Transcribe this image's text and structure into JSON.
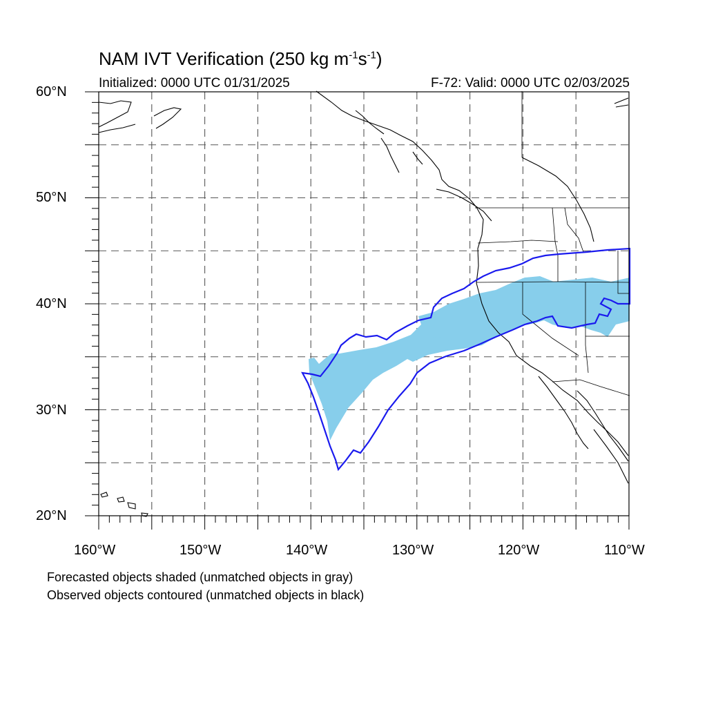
{
  "title": {
    "prefix": "NAM IVT Verification (250 kg m",
    "exp1": "-1",
    "mid": "s",
    "exp2": "-1",
    "suffix": ")"
  },
  "initialized": "Initialized: 0000 UTC 01/31/2025",
  "valid": "F-72: Valid: 0000 UTC 02/03/2025",
  "lat_labels": [
    "60°N",
    "50°N",
    "40°N",
    "30°N",
    "20°N"
  ],
  "lon_labels": [
    "160°W",
    "150°W",
    "140°W",
    "130°W",
    "120°W",
    "110°W"
  ],
  "map_extent": {
    "lon": [
      -160,
      -110
    ],
    "lat": [
      20,
      60
    ]
  },
  "grid": {
    "lon_step": 5,
    "lat_step": 5,
    "style": "dashed"
  },
  "colors": {
    "forecast_fill": "#87ceeb",
    "observed_contour": "#1a1aee",
    "coastline": "#000000"
  },
  "footer": {
    "line1": "Forecasted objects shaded (unmatched objects in gray)",
    "line2": "Observed objects contoured (unmatched objects in black)"
  }
}
